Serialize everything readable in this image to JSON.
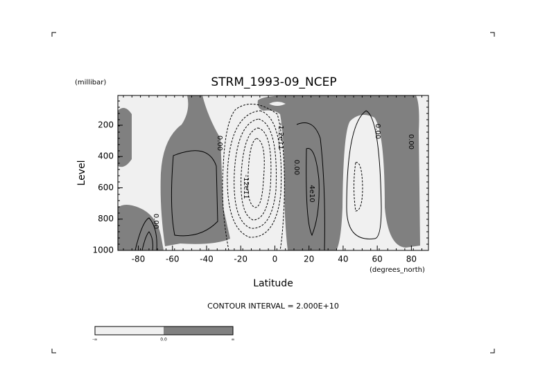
{
  "chart_data": {
    "type": "contour",
    "title": "STRM_1993-09_NCEP",
    "x_label": "Latitude",
    "y_label": "Level",
    "x_units": "(degrees_north)",
    "y_units": "(millibar)",
    "xlim": [
      -92,
      90
    ],
    "ylim": [
      1000,
      10
    ],
    "xticks": [
      -80,
      -60,
      -40,
      -20,
      0,
      20,
      40,
      60,
      80
    ],
    "yticks": [
      200,
      400,
      600,
      800,
      1000
    ],
    "annotation": "CONTOUR INTERVAL = 2.000E+10",
    "contour_labels": [
      "0.00",
      "0.00",
      "-1.2e11",
      "0.00",
      "-12e11",
      "4e10",
      "0.00",
      "0.00"
    ],
    "colors": {
      "negative": "#f0f0f0",
      "positive": "#808080"
    },
    "colorbar": {
      "labels": [
        "-∞",
        "0.0",
        "∞"
      ]
    }
  }
}
